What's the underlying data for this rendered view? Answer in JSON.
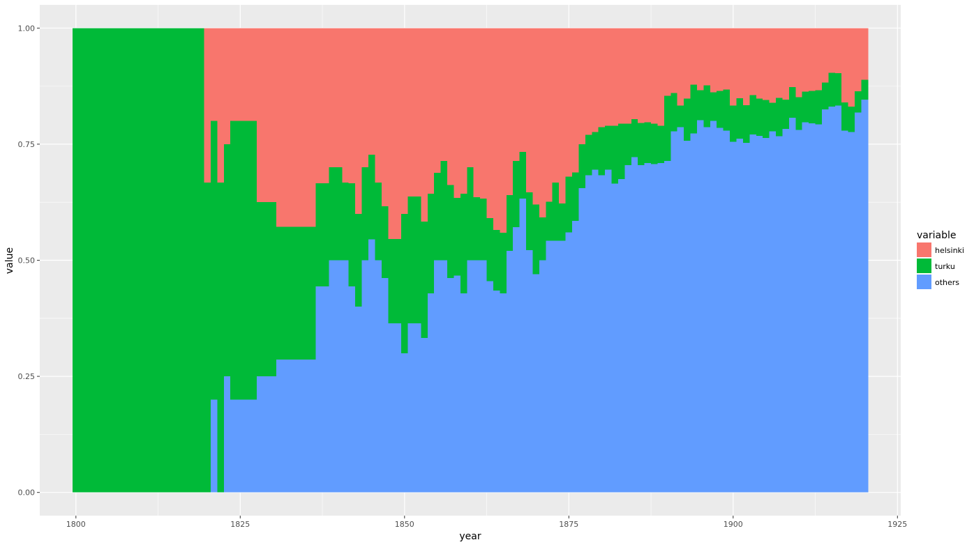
{
  "chart_data": {
    "type": "bar",
    "stacked": true,
    "position": "fill",
    "xlabel": "year",
    "ylabel": "value",
    "xlim": [
      1794.5,
      1925.5
    ],
    "ylim": [
      -0.05,
      1.05
    ],
    "x_ticks": [
      1800,
      1825,
      1850,
      1875,
      1900,
      1925
    ],
    "x_tick_labels": [
      "1800",
      "1825",
      "1850",
      "1875",
      "1900",
      "1925"
    ],
    "y_ticks": [
      0,
      0.25,
      0.5,
      0.75,
      1
    ],
    "y_tick_labels": [
      "0.00",
      "0.25",
      "0.50",
      "0.75",
      "1.00"
    ],
    "grid": true,
    "legend": {
      "title": "variable",
      "placement": "right",
      "entries": [
        {
          "label": "helsinki",
          "color": "#F8766D"
        },
        {
          "label": "turku",
          "color": "#00BA38"
        },
        {
          "label": "others",
          "color": "#619CFF"
        }
      ]
    },
    "colors": {
      "panel": "#EBEBEB",
      "grid": "#FFFFFF"
    },
    "x": [
      1800,
      1801,
      1802,
      1803,
      1804,
      1805,
      1806,
      1807,
      1808,
      1809,
      1810,
      1811,
      1812,
      1813,
      1814,
      1815,
      1816,
      1817,
      1818,
      1819,
      1820,
      1821,
      1822,
      1823,
      1824,
      1825,
      1826,
      1827,
      1828,
      1829,
      1830,
      1831,
      1832,
      1833,
      1834,
      1835,
      1836,
      1837,
      1838,
      1839,
      1840,
      1841,
      1842,
      1843,
      1844,
      1845,
      1846,
      1847,
      1848,
      1849,
      1850,
      1851,
      1852,
      1853,
      1854,
      1855,
      1856,
      1857,
      1858,
      1859,
      1860,
      1861,
      1862,
      1863,
      1864,
      1865,
      1866,
      1867,
      1868,
      1869,
      1870,
      1871,
      1872,
      1873,
      1874,
      1875,
      1876,
      1877,
      1878,
      1879,
      1880,
      1881,
      1882,
      1883,
      1884,
      1885,
      1886,
      1887,
      1888,
      1889,
      1890,
      1891,
      1892,
      1893,
      1894,
      1895,
      1896,
      1897,
      1898,
      1899,
      1900,
      1901,
      1902,
      1903,
      1904,
      1905,
      1906,
      1907,
      1908,
      1909,
      1910,
      1911,
      1912,
      1913,
      1914,
      1915,
      1916,
      1917,
      1918,
      1919,
      1920
    ],
    "series": [
      {
        "name": "others",
        "values": [
          0,
          0,
          0,
          0,
          0,
          0,
          0,
          0,
          0,
          0,
          0,
          0,
          0,
          0,
          0,
          0,
          0,
          0,
          0,
          0,
          0,
          0.2,
          0,
          0.25,
          0.2,
          0.2,
          0.2,
          0.2,
          0.25,
          0.25,
          0.25,
          0.286,
          0.286,
          0.286,
          0.286,
          0.286,
          0.286,
          0.444,
          0.444,
          0.5,
          0.5,
          0.5,
          0.444,
          0.4,
          0.5,
          0.545,
          0.5,
          0.462,
          0.364,
          0.364,
          0.3,
          0.364,
          0.364,
          0.333,
          0.429,
          0.5,
          0.5,
          0.462,
          0.467,
          0.429,
          0.5,
          0.5,
          0.5,
          0.455,
          0.435,
          0.429,
          0.52,
          0.571,
          0.633,
          0.522,
          0.47,
          0.5,
          0.542,
          0.542,
          0.542,
          0.56,
          0.585,
          0.655,
          0.683,
          0.695,
          0.683,
          0.695,
          0.665,
          0.675,
          0.705,
          0.722,
          0.705,
          0.709,
          0.707,
          0.709,
          0.714,
          0.778,
          0.787,
          0.757,
          0.773,
          0.802,
          0.787,
          0.8,
          0.785,
          0.779,
          0.755,
          0.762,
          0.753,
          0.771,
          0.768,
          0.763,
          0.778,
          0.767,
          0.783,
          0.807,
          0.781,
          0.797,
          0.795,
          0.793,
          0.825,
          0.831,
          0.833,
          0.779,
          0.776,
          0.818,
          0.846
        ]
      },
      {
        "name": "turku",
        "values": [
          1,
          1,
          1,
          1,
          1,
          1,
          1,
          1,
          1,
          1,
          1,
          1,
          1,
          1,
          1,
          1,
          1,
          1,
          1,
          1,
          0.667,
          0.6,
          0.667,
          0.5,
          0.6,
          0.6,
          0.6,
          0.6,
          0.375,
          0.375,
          0.375,
          0.286,
          0.286,
          0.286,
          0.286,
          0.286,
          0.286,
          0.222,
          0.222,
          0.2,
          0.2,
          0.167,
          0.222,
          0.2,
          0.2,
          0.182,
          0.167,
          0.154,
          0.182,
          0.182,
          0.3,
          0.273,
          0.273,
          0.25,
          0.214,
          0.188,
          0.214,
          0.2,
          0.167,
          0.214,
          0.2,
          0.136,
          0.133,
          0.136,
          0.13,
          0.13,
          0.12,
          0.143,
          0.1,
          0.124,
          0.15,
          0.092,
          0.084,
          0.125,
          0.08,
          0.12,
          0.104,
          0.095,
          0.087,
          0.081,
          0.104,
          0.095,
          0.125,
          0.119,
          0.089,
          0.082,
          0.091,
          0.088,
          0.087,
          0.081,
          0.14,
          0.082,
          0.046,
          0.091,
          0.105,
          0.064,
          0.09,
          0.062,
          0.08,
          0.089,
          0.078,
          0.087,
          0.081,
          0.085,
          0.08,
          0.082,
          0.061,
          0.083,
          0.063,
          0.066,
          0.07,
          0.066,
          0.07,
          0.073,
          0.058,
          0.073,
          0.07,
          0.061,
          0.055,
          0.046,
          0.043
        ]
      },
      {
        "name": "helsinki",
        "values": [
          0,
          0,
          0,
          0,
          0,
          0,
          0,
          0,
          0,
          0,
          0,
          0,
          0,
          0,
          0,
          0,
          0,
          0,
          0,
          0,
          0.333,
          0.2,
          0.333,
          0.25,
          0.2,
          0.2,
          0.2,
          0.2,
          0.375,
          0.375,
          0.375,
          0.428,
          0.428,
          0.428,
          0.428,
          0.428,
          0.428,
          0.334,
          0.334,
          0.3,
          0.3,
          0.333,
          0.334,
          0.4,
          0.3,
          0.273,
          0.333,
          0.384,
          0.454,
          0.454,
          0.4,
          0.363,
          0.363,
          0.417,
          0.357,
          0.312,
          0.286,
          0.338,
          0.366,
          0.357,
          0.3,
          0.364,
          0.367,
          0.409,
          0.435,
          0.441,
          0.36,
          0.286,
          0.267,
          0.354,
          0.38,
          0.408,
          0.374,
          0.333,
          0.378,
          0.32,
          0.311,
          0.25,
          0.23,
          0.224,
          0.213,
          0.21,
          0.21,
          0.206,
          0.206,
          0.196,
          0.204,
          0.203,
          0.206,
          0.21,
          0.146,
          0.14,
          0.167,
          0.152,
          0.122,
          0.134,
          0.123,
          0.138,
          0.135,
          0.132,
          0.167,
          0.151,
          0.166,
          0.144,
          0.152,
          0.155,
          0.161,
          0.15,
          0.154,
          0.127,
          0.149,
          0.137,
          0.135,
          0.134,
          0.117,
          0.096,
          0.097,
          0.16,
          0.169,
          0.136,
          0.111
        ]
      }
    ]
  }
}
